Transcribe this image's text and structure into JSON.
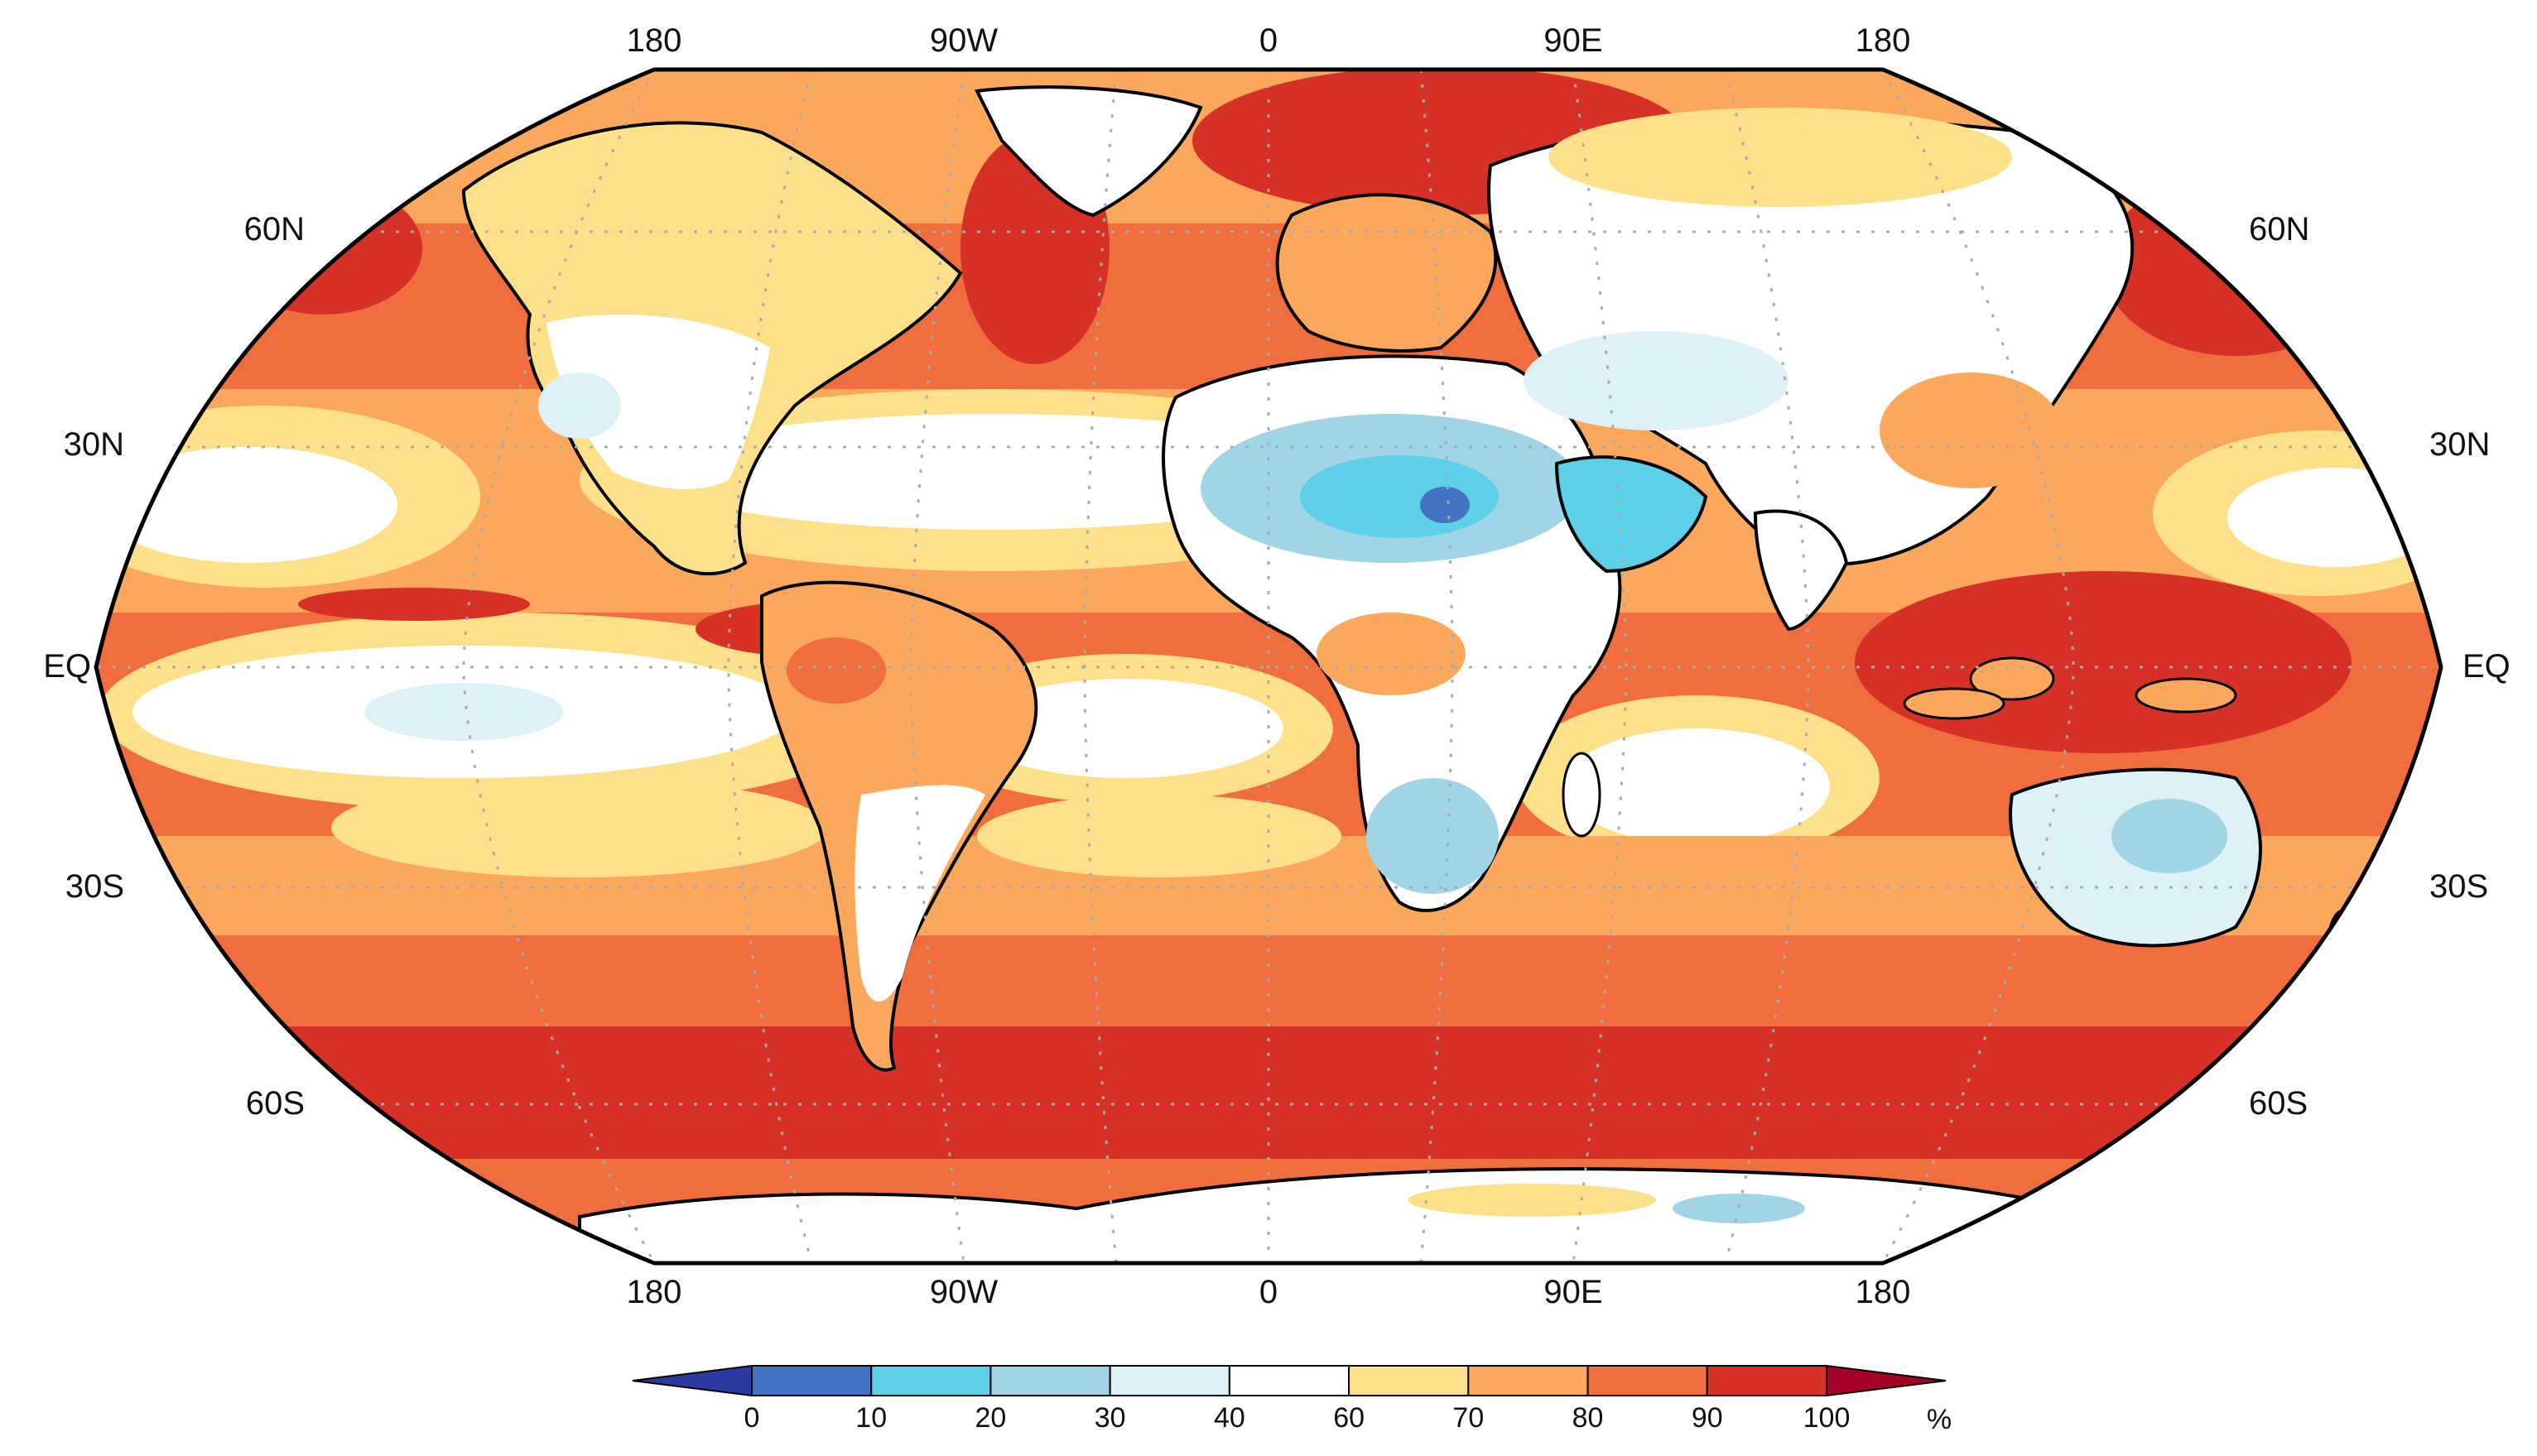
{
  "map": {
    "projection": "Robinson",
    "lon_labels": [
      "180",
      "90W",
      "0",
      "90E",
      "180"
    ],
    "lat_labels": [
      "60N",
      "30N",
      "EQ",
      "30S",
      "60S"
    ],
    "gridlines": "dotted"
  },
  "colorbar": {
    "unit": "%",
    "tick_labels": [
      "0",
      "10",
      "20",
      "30",
      "40",
      "60",
      "70",
      "80",
      "90",
      "100"
    ],
    "colors": [
      "#2b3aa0",
      "#4472c4",
      "#5bd0e6",
      "#9fd5e6",
      "#ddf1f7",
      "#ffffff",
      "#ffe08a",
      "#fba85c",
      "#f06d3e",
      "#d73027",
      "#a50026"
    ],
    "extend": "both"
  }
}
